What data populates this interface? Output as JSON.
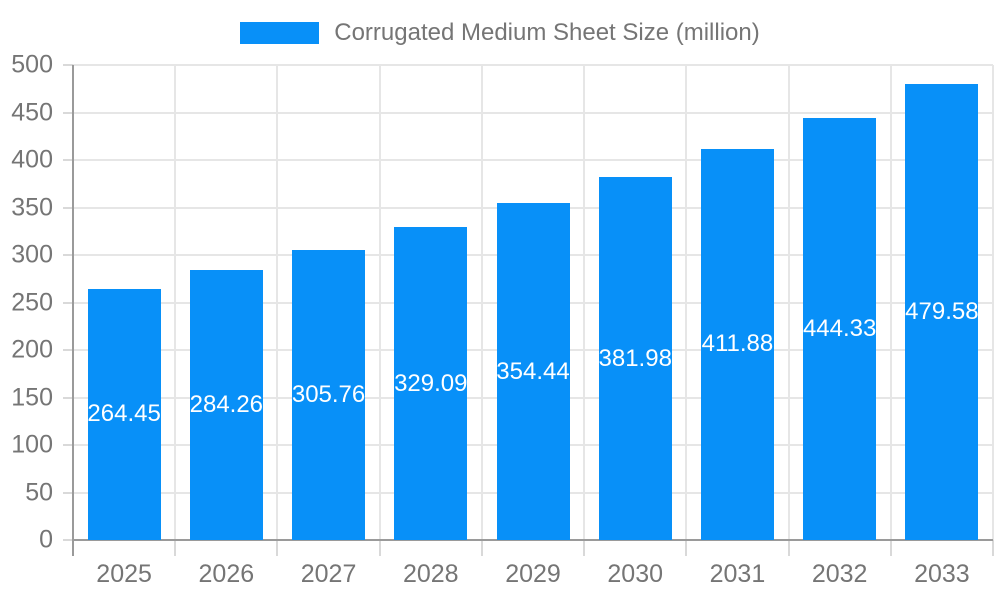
{
  "chart_data": {
    "type": "bar",
    "title": "Corrugated Medium Sheet Size (million)",
    "legend_entries": [
      "Corrugated Medium Sheet Size (million)"
    ],
    "legend_position": "top-center",
    "categories": [
      "2025",
      "2026",
      "2027",
      "2028",
      "2029",
      "2030",
      "2031",
      "2032",
      "2033"
    ],
    "values": [
      264.45,
      284.26,
      305.76,
      329.09,
      354.44,
      381.98,
      411.88,
      444.33,
      479.58
    ],
    "data_labels": [
      "264.45",
      "284.26",
      "305.76",
      "329.09",
      "354.44",
      "381.98",
      "411.88",
      "444.33",
      "479.58"
    ],
    "xlabel": "",
    "ylabel": "",
    "ylim": [
      0,
      500
    ],
    "y_tick_step": 50,
    "y_tick_labels": [
      "0",
      "50",
      "100",
      "150",
      "200",
      "250",
      "300",
      "350",
      "400",
      "450",
      "500"
    ],
    "grid": true,
    "colors": {
      "bar": "#0890f8",
      "data_label": "#ffffff",
      "axis_text": "#757575",
      "gridline": "#e6e6e6",
      "axis_line": "#9a9a9a",
      "tick": "#d9d9d9",
      "background": "#ffffff"
    }
  }
}
